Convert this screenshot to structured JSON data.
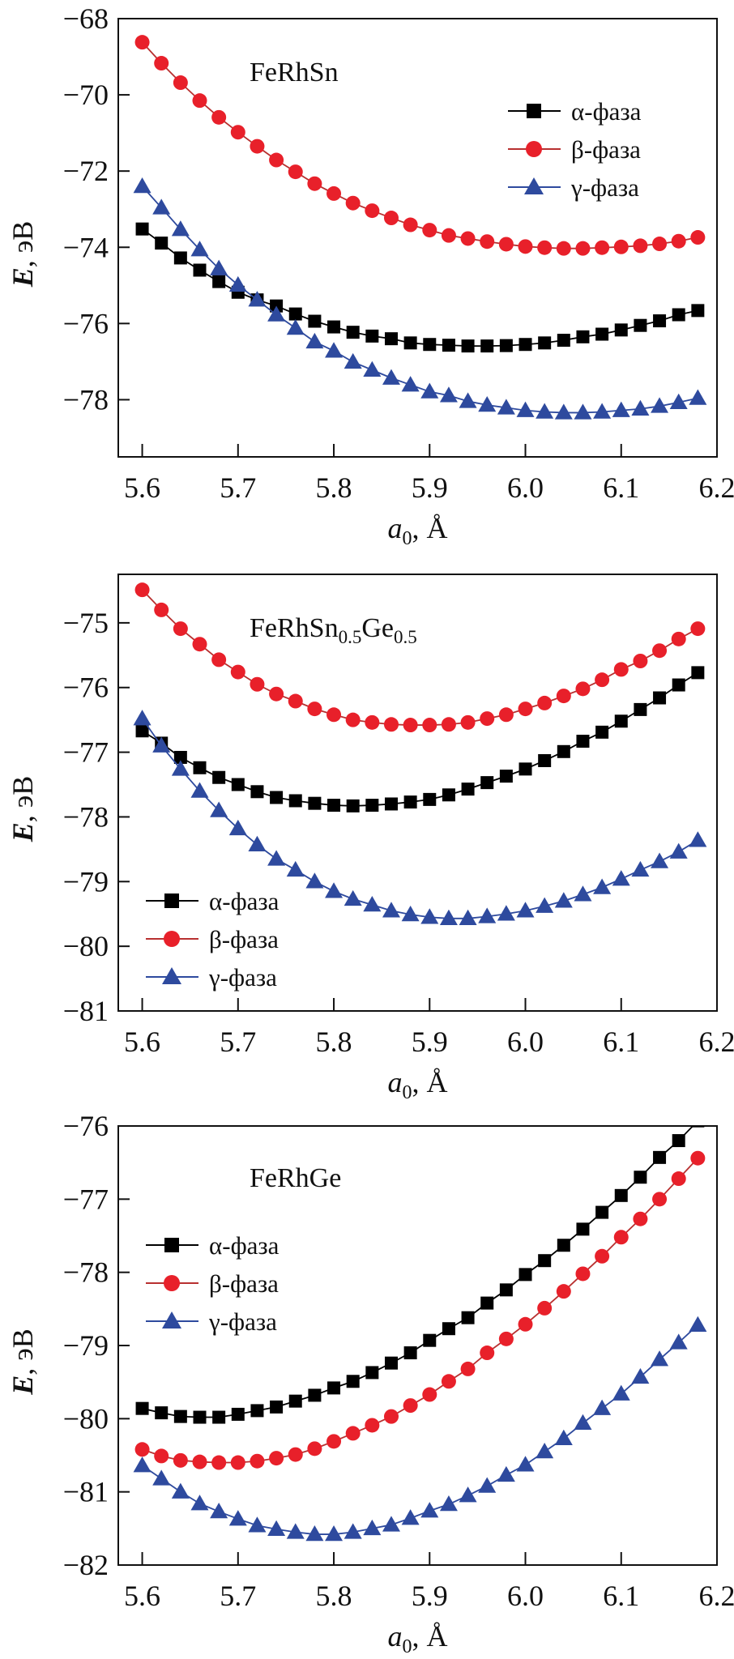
{
  "series_styles": {
    "alpha": {
      "color": "#000000",
      "line": "#000000",
      "marker": "square"
    },
    "beta": {
      "color": "#e8202a",
      "line": "#b83030",
      "marker": "circle"
    },
    "gamma": {
      "color": "#2e4a9e",
      "line": "#2e4a9e",
      "marker": "triangle"
    }
  },
  "chart_data": [
    {
      "type": "line",
      "title_parts": [
        {
          "t": "FeRhSn",
          "sub": false
        }
      ],
      "xlabel_parts": [
        "a",
        "0",
        ", Å"
      ],
      "ylabel_parts": [
        "E",
        ", эВ"
      ],
      "xlim": [
        5.575,
        6.2
      ],
      "ylim": [
        -79.5,
        -68
      ],
      "xticks": [
        "5.6",
        "5.7",
        "5.8",
        "5.9",
        "6.0",
        "6.1",
        "6.2"
      ],
      "yticks": [
        "−68",
        "−70",
        "−72",
        "−74",
        "−76",
        "−78"
      ],
      "yticks_values": [
        -68,
        -70,
        -72,
        -74,
        -76,
        -78
      ],
      "legend_position": "top-right",
      "x": [
        5.6,
        5.62,
        5.64,
        5.66,
        5.68,
        5.7,
        5.72,
        5.74,
        5.76,
        5.78,
        5.8,
        5.82,
        5.84,
        5.86,
        5.88,
        5.9,
        5.92,
        5.94,
        5.96,
        5.98,
        6.0,
        6.02,
        6.04,
        6.06,
        6.08,
        6.1,
        6.12,
        6.14,
        6.16,
        6.18
      ],
      "series": [
        {
          "key": "alpha",
          "name": "α-фаза",
          "values": [
            -73.52,
            -73.89,
            -74.28,
            -74.6,
            -74.9,
            -75.18,
            -75.38,
            -75.54,
            -75.75,
            -75.94,
            -76.09,
            -76.23,
            -76.33,
            -76.4,
            -76.51,
            -76.55,
            -76.57,
            -76.59,
            -76.59,
            -76.58,
            -76.55,
            -76.51,
            -76.44,
            -76.35,
            -76.28,
            -76.17,
            -76.05,
            -75.93,
            -75.77,
            -75.66
          ]
        },
        {
          "key": "beta",
          "name": "β-фаза",
          "values": [
            -68.62,
            -69.17,
            -69.68,
            -70.15,
            -70.59,
            -70.98,
            -71.35,
            -71.71,
            -72.02,
            -72.33,
            -72.59,
            -72.84,
            -73.04,
            -73.23,
            -73.41,
            -73.55,
            -73.69,
            -73.77,
            -73.85,
            -73.92,
            -73.98,
            -74.01,
            -74.03,
            -74.03,
            -74.01,
            -73.99,
            -73.96,
            -73.91,
            -73.84,
            -73.74
          ]
        },
        {
          "key": "gamma",
          "name": "γ-фаза",
          "values": [
            -72.4,
            -72.96,
            -73.53,
            -74.06,
            -74.56,
            -74.99,
            -75.38,
            -75.77,
            -76.12,
            -76.48,
            -76.72,
            -77.01,
            -77.22,
            -77.43,
            -77.61,
            -77.79,
            -77.89,
            -78.04,
            -78.14,
            -78.21,
            -78.28,
            -78.32,
            -78.34,
            -78.34,
            -78.32,
            -78.28,
            -78.24,
            -78.17,
            -78.07,
            -77.96
          ]
        }
      ]
    },
    {
      "type": "line",
      "title_parts": [
        {
          "t": "FeRhSn",
          "sub": false
        },
        {
          "t": "0.5",
          "sub": true
        },
        {
          "t": "Ge",
          "sub": false
        },
        {
          "t": "0.5",
          "sub": true
        }
      ],
      "xlabel_parts": [
        "a",
        "0",
        ", Å"
      ],
      "ylabel_parts": [
        "E",
        ", эВ"
      ],
      "xlim": [
        5.575,
        6.2
      ],
      "ylim": [
        -81,
        -74.25
      ],
      "xticks": [
        "5.6",
        "5.7",
        "5.8",
        "5.9",
        "6.0",
        "6.1",
        "6.2"
      ],
      "yticks": [
        "−75",
        "−76",
        "−77",
        "−78",
        "−79",
        "−80",
        "−81"
      ],
      "yticks_values": [
        -75,
        -76,
        -77,
        -78,
        -79,
        -80,
        -81
      ],
      "legend_position": "bottom-left",
      "x": [
        5.6,
        5.62,
        5.64,
        5.66,
        5.68,
        5.7,
        5.72,
        5.74,
        5.76,
        5.78,
        5.8,
        5.82,
        5.84,
        5.86,
        5.88,
        5.9,
        5.92,
        5.94,
        5.96,
        5.98,
        6.0,
        6.02,
        6.04,
        6.06,
        6.08,
        6.1,
        6.12,
        6.14,
        6.16,
        6.18
      ],
      "series": [
        {
          "key": "alpha",
          "name": "α-фаза",
          "values": [
            -76.67,
            -76.86,
            -77.08,
            -77.24,
            -77.39,
            -77.5,
            -77.61,
            -77.7,
            -77.75,
            -77.79,
            -77.82,
            -77.83,
            -77.82,
            -77.8,
            -77.77,
            -77.73,
            -77.66,
            -77.57,
            -77.47,
            -77.37,
            -77.26,
            -77.13,
            -76.99,
            -76.83,
            -76.69,
            -76.52,
            -76.34,
            -76.16,
            -75.96,
            -75.77
          ]
        },
        {
          "key": "beta",
          "name": "β-фаза",
          "values": [
            -74.49,
            -74.8,
            -75.09,
            -75.33,
            -75.57,
            -75.76,
            -75.95,
            -76.1,
            -76.21,
            -76.33,
            -76.42,
            -76.5,
            -76.54,
            -76.57,
            -76.58,
            -76.58,
            -76.57,
            -76.54,
            -76.48,
            -76.42,
            -76.33,
            -76.24,
            -76.13,
            -76.02,
            -75.88,
            -75.72,
            -75.59,
            -75.43,
            -75.25,
            -75.09
          ]
        },
        {
          "key": "gamma",
          "name": "γ-фаза",
          "values": [
            -76.48,
            -76.9,
            -77.26,
            -77.6,
            -77.9,
            -78.18,
            -78.43,
            -78.65,
            -78.82,
            -79.0,
            -79.15,
            -79.27,
            -79.36,
            -79.45,
            -79.51,
            -79.55,
            -79.57,
            -79.57,
            -79.54,
            -79.5,
            -79.45,
            -79.38,
            -79.3,
            -79.2,
            -79.09,
            -78.96,
            -78.82,
            -78.69,
            -78.54,
            -78.36
          ]
        }
      ]
    },
    {
      "type": "line",
      "title_parts": [
        {
          "t": "FeRhGe",
          "sub": false
        }
      ],
      "xlabel_parts": [
        "a",
        "0",
        ", Å"
      ],
      "ylabel_parts": [
        "E",
        ", эВ"
      ],
      "xlim": [
        5.575,
        6.2
      ],
      "ylim": [
        -82,
        -76
      ],
      "xticks": [
        "5.6",
        "5.7",
        "5.8",
        "5.9",
        "6.0",
        "6.1",
        "6.2"
      ],
      "yticks": [
        "−76",
        "−77",
        "−78",
        "−79",
        "−80",
        "−81",
        "−82"
      ],
      "yticks_values": [
        -76,
        -77,
        -78,
        -79,
        -80,
        -81,
        -82
      ],
      "legend_position": "top-left",
      "x": [
        5.6,
        5.62,
        5.64,
        5.66,
        5.68,
        5.7,
        5.72,
        5.74,
        5.76,
        5.78,
        5.8,
        5.82,
        5.84,
        5.86,
        5.88,
        5.9,
        5.92,
        5.94,
        5.96,
        5.98,
        6.0,
        6.02,
        6.04,
        6.06,
        6.08,
        6.1,
        6.12,
        6.14,
        6.16,
        6.18
      ],
      "series": [
        {
          "key": "alpha",
          "name": "α-фаза",
          "values": [
            -79.86,
            -79.92,
            -79.97,
            -79.98,
            -79.98,
            -79.94,
            -79.89,
            -79.84,
            -79.76,
            -79.68,
            -79.58,
            -79.49,
            -79.37,
            -79.24,
            -79.1,
            -78.93,
            -78.77,
            -78.62,
            -78.42,
            -78.24,
            -78.03,
            -77.84,
            -77.63,
            -77.41,
            -77.18,
            -76.95,
            -76.7,
            -76.43,
            -76.2,
            -75.93
          ]
        },
        {
          "key": "beta",
          "name": "β-фаза",
          "values": [
            -80.42,
            -80.51,
            -80.57,
            -80.59,
            -80.6,
            -80.6,
            -80.58,
            -80.54,
            -80.49,
            -80.41,
            -80.31,
            -80.2,
            -80.09,
            -79.97,
            -79.82,
            -79.67,
            -79.49,
            -79.32,
            -79.1,
            -78.91,
            -78.71,
            -78.49,
            -78.26,
            -78.02,
            -77.78,
            -77.52,
            -77.27,
            -77.0,
            -76.72,
            -76.44
          ]
        },
        {
          "key": "gamma",
          "name": "γ-фаза",
          "values": [
            -80.64,
            -80.82,
            -81.0,
            -81.16,
            -81.27,
            -81.37,
            -81.46,
            -81.51,
            -81.55,
            -81.58,
            -81.58,
            -81.55,
            -81.5,
            -81.45,
            -81.36,
            -81.26,
            -81.17,
            -81.05,
            -80.92,
            -80.77,
            -80.63,
            -80.45,
            -80.27,
            -80.06,
            -79.86,
            -79.66,
            -79.43,
            -79.19,
            -78.96,
            -78.72
          ]
        }
      ]
    }
  ]
}
